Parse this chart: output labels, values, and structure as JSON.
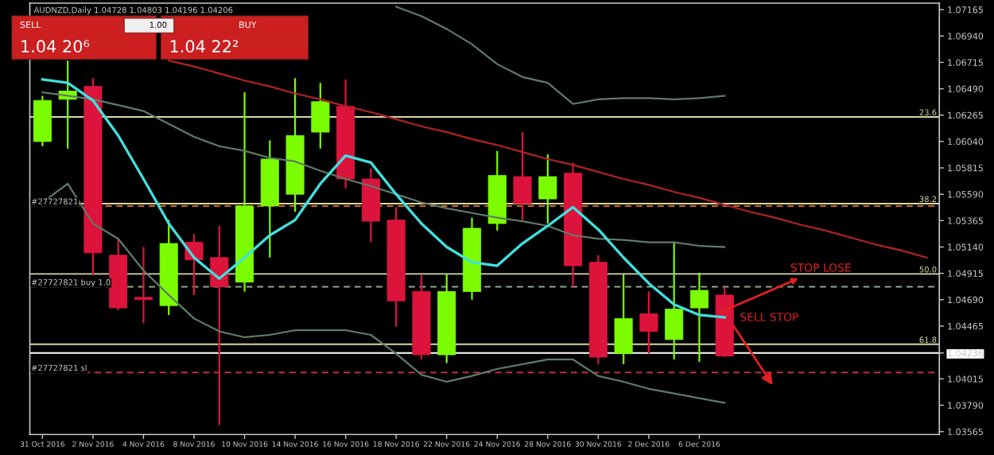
{
  "chart_data": {
    "type": "candlestick",
    "title": "AUDNZD,Daily 1.04728 1.04803 1.04196 1.04206",
    "categories": [
      "31 Oct 2016",
      null,
      "2 Nov 2016",
      null,
      "4 Nov 2016",
      null,
      "8 Nov 2016",
      null,
      "10 Nov 2016",
      null,
      "14 Nov 2016",
      null,
      "16 Nov 2016",
      null,
      "18 Nov 2016",
      null,
      "22 Nov 2016",
      null,
      "24 Nov 2016",
      null,
      "28 Nov 2016",
      null,
      "30 Nov 2016",
      null,
      "2 Dec 2016",
      null,
      "6 Dec 2016",
      null,
      null,
      null,
      null,
      null,
      null,
      null,
      null,
      null
    ],
    "ohlc": [
      [
        1.0604,
        1.0643,
        1.06,
        1.0639
      ],
      [
        1.064,
        1.0673,
        1.0598,
        1.0647
      ],
      [
        1.0651,
        1.0658,
        1.049,
        1.0509
      ],
      [
        1.0507,
        1.0521,
        1.046,
        1.0462
      ],
      [
        1.0471,
        1.0514,
        1.0449,
        1.0469
      ],
      [
        1.0464,
        1.0537,
        1.0456,
        1.0517
      ],
      [
        1.0518,
        1.0525,
        1.0473,
        1.0503
      ],
      [
        1.0505,
        1.0532,
        1.0362,
        1.048
      ],
      [
        1.0484,
        1.0646,
        1.0476,
        1.0549
      ],
      [
        1.0549,
        1.0605,
        1.0505,
        1.0589
      ],
      [
        1.0559,
        1.0658,
        1.0544,
        1.0609
      ],
      [
        1.0612,
        1.0654,
        1.0598,
        1.0638
      ],
      [
        1.0634,
        1.0657,
        1.0564,
        1.0572
      ],
      [
        1.0572,
        1.0581,
        1.0518,
        1.0536
      ],
      [
        1.0537,
        1.0548,
        1.0446,
        1.0468
      ],
      [
        1.0476,
        1.049,
        1.0418,
        1.0422
      ],
      [
        1.0422,
        1.0491,
        1.0415,
        1.0476
      ],
      [
        1.0476,
        1.0539,
        1.0469,
        1.053
      ],
      [
        1.0534,
        1.0596,
        1.0528,
        1.0575
      ],
      [
        1.0574,
        1.0612,
        1.0537,
        1.0551
      ],
      [
        1.0555,
        1.0593,
        1.0534,
        1.0574
      ],
      [
        1.0577,
        1.0586,
        1.048,
        1.0498
      ],
      [
        1.0501,
        1.0507,
        1.0414,
        1.042
      ],
      [
        1.0423,
        1.0491,
        1.0414,
        1.0453
      ],
      [
        1.0457,
        1.0476,
        1.0423,
        1.0442
      ],
      [
        1.0435,
        1.0518,
        1.0418,
        1.0461
      ],
      [
        1.0462,
        1.0492,
        1.0416,
        1.0477
      ],
      [
        1.0473,
        1.048,
        1.042,
        1.0421
      ],
      null,
      null,
      null,
      null,
      null,
      null,
      null,
      null
    ],
    "colors": [
      "#7cfc00",
      "#7cfc00",
      "#dc143c",
      "#dc143c",
      "#dc143c",
      "#7cfc00",
      "#dc143c",
      "#dc143c",
      "#7cfc00",
      "#7cfc00",
      "#7cfc00",
      "#7cfc00",
      "#dc143c",
      "#dc143c",
      "#dc143c",
      "#dc143c",
      "#7cfc00",
      "#7cfc00",
      "#7cfc00",
      "#dc143c",
      "#7cfc00",
      "#dc143c",
      "#dc143c",
      "#7cfc00",
      "#dc143c",
      "#7cfc00",
      "#7cfc00",
      "#dc143c",
      null,
      null,
      null,
      null,
      null,
      null,
      null,
      null
    ],
    "series": [
      {
        "type": "line",
        "color": "#5f7a6a",
        "values": [
          null,
          null,
          null,
          null,
          null,
          null,
          null,
          null,
          null,
          null,
          null,
          null,
          null,
          null,
          1.0719,
          1.0711,
          1.07,
          1.0687,
          1.067,
          1.0659,
          1.0654,
          1.0636,
          1.064,
          1.0641,
          1.0641,
          1.064,
          1.0641,
          1.0643,
          null,
          null,
          null,
          null,
          null,
          null,
          null,
          null
        ]
      },
      {
        "type": "line",
        "color": "#5f7a6a",
        "values": [
          1.0646,
          1.0643,
          1.064,
          1.0635,
          1.063,
          1.0619,
          1.0608,
          1.06,
          1.0596,
          1.059,
          1.0587,
          1.0579,
          1.0572,
          1.0566,
          1.0559,
          1.0552,
          1.0547,
          1.0543,
          1.0539,
          1.0536,
          1.0532,
          1.0524,
          1.0521,
          1.052,
          1.0518,
          1.0518,
          1.0515,
          1.0514,
          null,
          null,
          null,
          null,
          null,
          null,
          null,
          null
        ]
      },
      {
        "type": "line",
        "color": "#5f7a6a",
        "values": [
          1.0552,
          1.0568,
          1.0534,
          1.0521,
          1.0494,
          1.0473,
          1.0453,
          1.0442,
          1.0437,
          1.0439,
          1.0443,
          1.0443,
          1.0443,
          1.0439,
          1.0423,
          1.0405,
          1.0399,
          1.0404,
          1.041,
          1.0414,
          1.0418,
          1.0418,
          1.0404,
          1.0399,
          1.0393,
          1.0389,
          1.0385,
          1.0381,
          null,
          null,
          null,
          null,
          null,
          null,
          null,
          null
        ]
      },
      {
        "type": "line",
        "color": "#40e0e0",
        "values": [
          1.0657,
          1.0654,
          1.0639,
          1.0609,
          1.0572,
          1.0534,
          1.0505,
          1.0487,
          1.0505,
          1.0524,
          1.0537,
          1.0568,
          1.0592,
          1.0586,
          1.0559,
          1.0534,
          1.0514,
          1.0501,
          1.0498,
          1.0517,
          1.0532,
          1.0548,
          1.0529,
          1.0505,
          1.0483,
          1.0465,
          1.0456,
          1.0454,
          null,
          null,
          null,
          null,
          null,
          null,
          null,
          null
        ]
      },
      {
        "type": "line",
        "color": "#b22222",
        "values": [
          null,
          null,
          null,
          null,
          null,
          1.0673,
          1.0668,
          1.0662,
          1.0656,
          1.0651,
          1.0645,
          1.064,
          1.0634,
          1.0629,
          1.0623,
          1.0617,
          1.0612,
          1.0606,
          1.0601,
          1.0595,
          1.0589,
          1.0584,
          1.0578,
          1.0572,
          1.0567,
          1.0561,
          1.0556,
          1.055,
          1.0544,
          1.0539,
          1.0533,
          1.0528,
          1.0522,
          1.0516,
          1.0511,
          1.0505
        ]
      }
    ],
    "ylim": [
      1.0354,
      1.0722
    ],
    "yticks": [
      1.07165,
      {
        "value": 1.0694,
        "label": "1.06940"
      },
      1.06715,
      {
        "value": 1.0649,
        "label": "1.06490"
      },
      1.06265,
      {
        "value": 1.0604,
        "label": "1.06040"
      },
      1.05815,
      {
        "value": 1.0559,
        "label": "1.05590"
      },
      1.05365,
      {
        "value": 1.0514,
        "label": "1.05140"
      },
      1.04915,
      {
        "value": 1.0469,
        "label": "1.04690"
      },
      1.04465,
      {
        "value": 1.04236,
        "label": "1.04236"
      },
      1.04015,
      {
        "value": 1.0379,
        "label": "1.03790"
      },
      1.03565
    ],
    "ref_lines": [
      {
        "axis": "y",
        "value": 1.0625,
        "color": "#d8d8a8"
      },
      {
        "axis": "y",
        "value": 1.0551,
        "color": "#d8d8a8"
      },
      {
        "axis": "y",
        "value": 1.0491,
        "color": "#d8d8a8"
      },
      {
        "axis": "y",
        "value": 1.0431,
        "color": "#d8d8a8"
      },
      {
        "axis": "y",
        "value": 1.0549,
        "color": "#d2691e",
        "line_style": "dashed"
      },
      {
        "axis": "y",
        "value": 1.048,
        "color": "#8fa88f",
        "line_style": "dashed"
      },
      {
        "axis": "y",
        "value": 1.0407,
        "color": "#c03040",
        "line_style": "dashed"
      },
      {
        "axis": "y",
        "value": 1.04236,
        "color": "#ffffff"
      }
    ],
    "annotations": [
      "SELL",
      "1.00",
      "BUY",
      "1.04 20⁶",
      "1.04 22²",
      {
        "text": "STOP LOSE",
        "y": 1.0491
      },
      "SELL STOP",
      {
        "text": "23.6",
        "y": 1.0625
      },
      {
        "text": "38.2",
        "y": 1.0551
      },
      {
        "text": "50.0",
        "y": 1.0491
      },
      {
        "text": "61.8",
        "y": 1.0431
      },
      {
        "text": "#27727821",
        "y": 1.0549
      },
      {
        "text": "#27727821 buy 1.0",
        "y": 1.048
      },
      {
        "text": "#27727821 sl",
        "y": 1.0407
      }
    ],
    "grid": false
  }
}
